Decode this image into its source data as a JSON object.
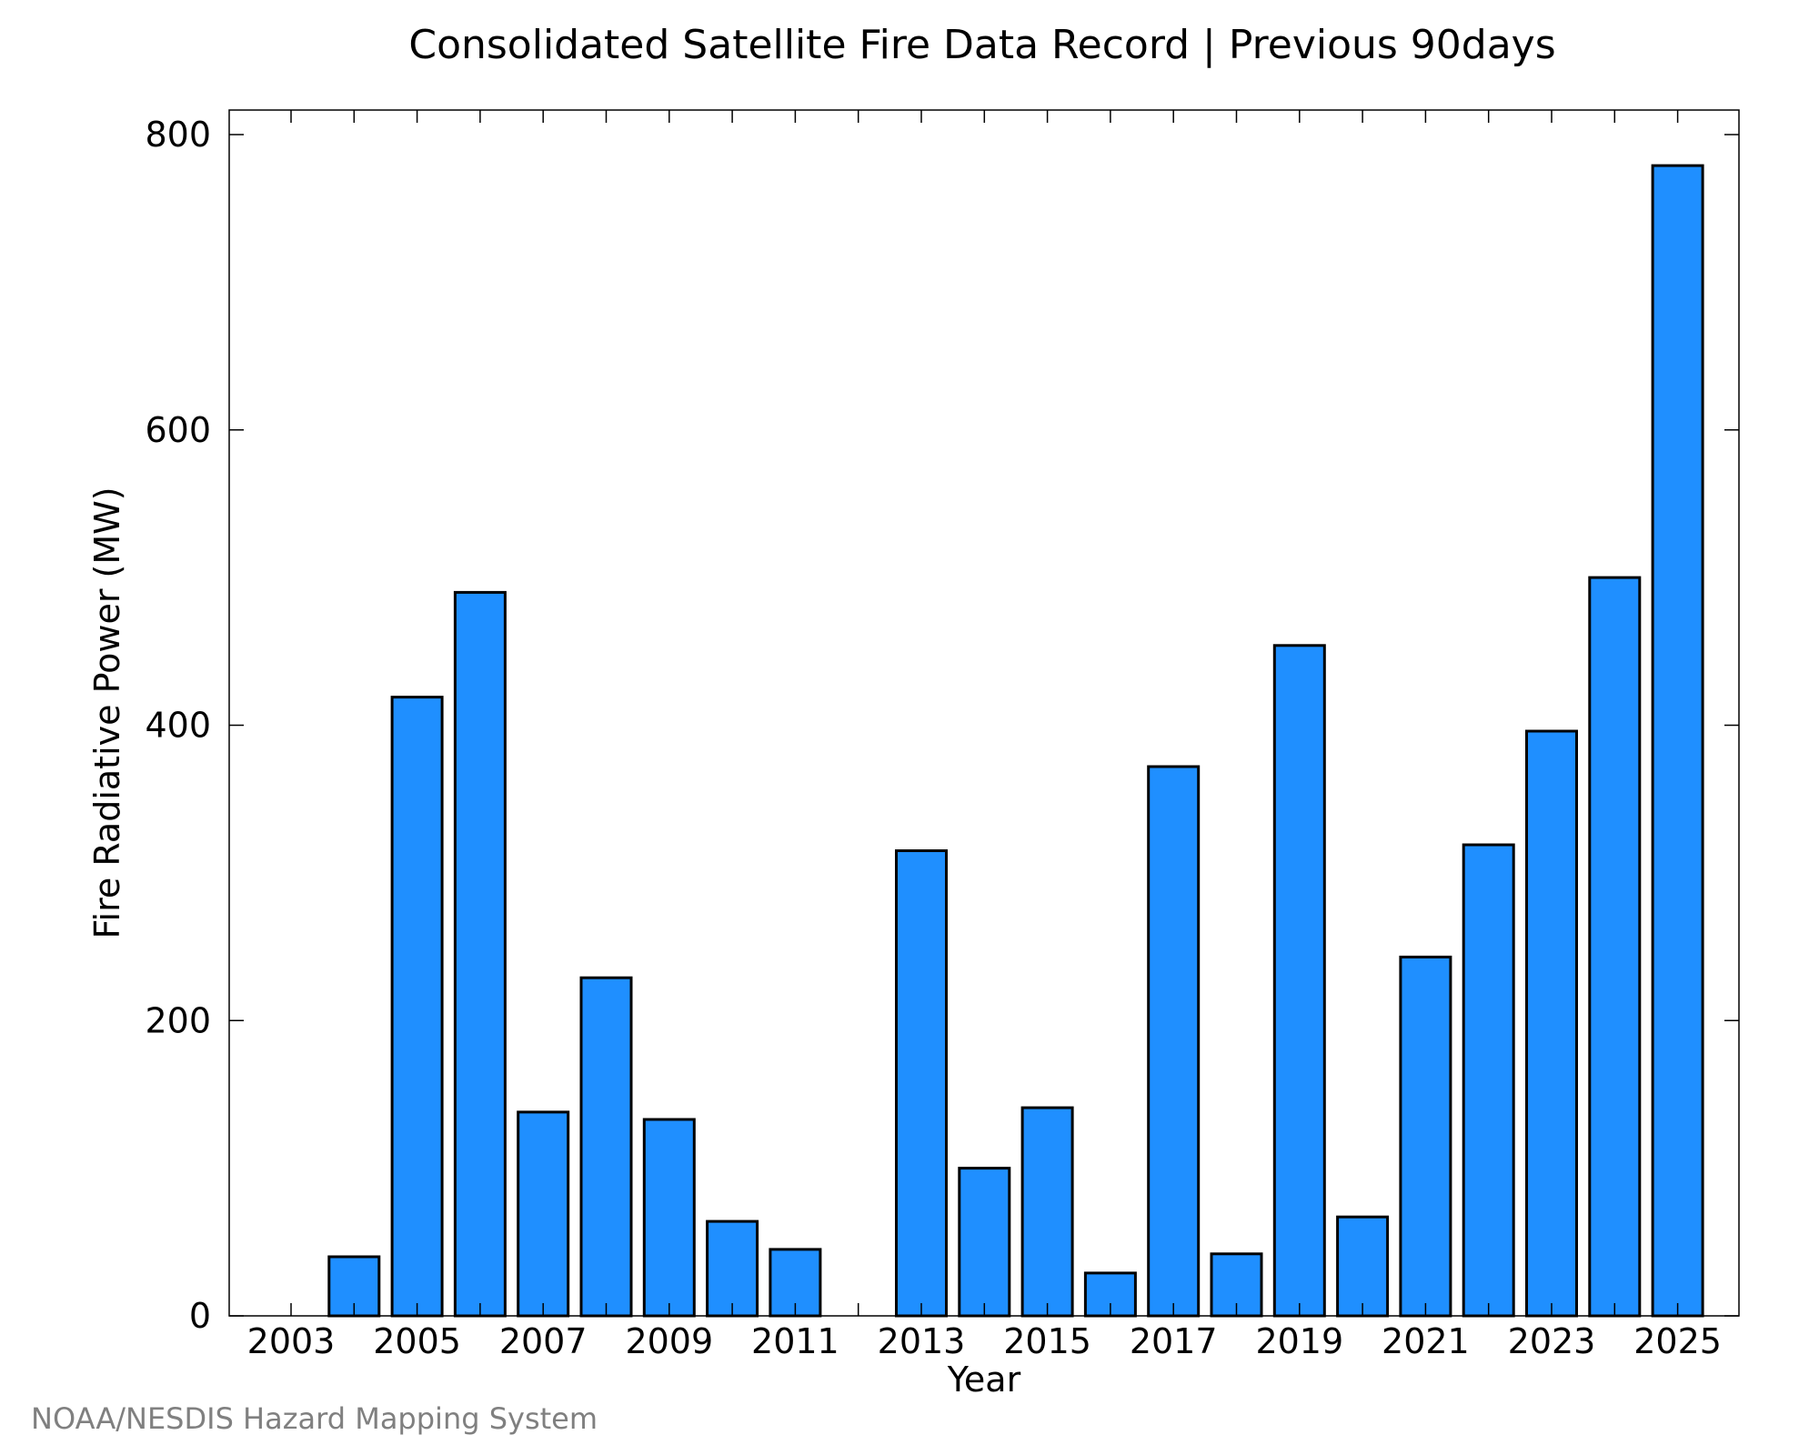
{
  "chart_data": {
    "type": "bar",
    "title": "Consolidated Satellite Fire Data Record | Previous 90days",
    "xlabel": "Year",
    "ylabel": "Fire Radiative Power (MW)",
    "x": [
      2003,
      2004,
      2005,
      2006,
      2007,
      2008,
      2009,
      2010,
      2011,
      2012,
      2013,
      2014,
      2015,
      2016,
      2017,
      2018,
      2019,
      2020,
      2021,
      2022,
      2023,
      2024,
      2025
    ],
    "values": [
      0,
      40,
      419,
      490,
      138,
      229,
      133,
      64,
      45,
      0,
      315,
      100,
      141,
      29,
      372,
      42,
      454,
      67,
      243,
      319,
      396,
      500,
      779
    ],
    "xticks": [
      "2003",
      "2005",
      "2007",
      "2009",
      "2011",
      "2013",
      "2015",
      "2017",
      "2019",
      "2021",
      "2023",
      "2025"
    ],
    "yticks": [
      "0",
      "200",
      "400",
      "600",
      "800"
    ],
    "ylim": [
      0,
      800
    ],
    "grid": false,
    "bar_color": "#1f8fff",
    "bar_edge_color": "#000000"
  },
  "footer": {
    "credit": "NOAA/NESDIS Hazard Mapping System",
    "credit_color": "#808080"
  }
}
